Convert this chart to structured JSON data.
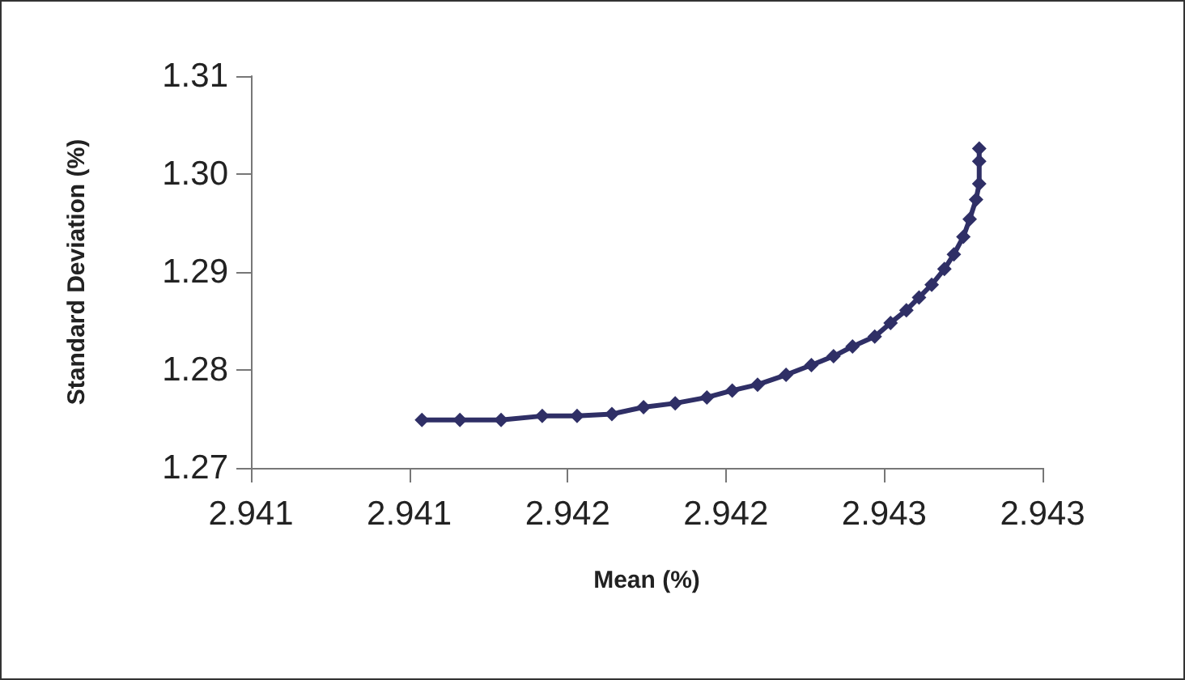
{
  "chart_data": {
    "type": "line",
    "xlabel": "Mean (%)",
    "ylabel": "Standard Deviation (%)",
    "x": [
      2.94104,
      2.94116,
      2.94129,
      2.94142,
      2.94153,
      2.94164,
      2.94174,
      2.94184,
      2.94194,
      2.94202,
      2.9421,
      2.94219,
      2.94227,
      2.94234,
      2.9424,
      2.94247,
      2.94252,
      2.94257,
      2.94261,
      2.94265,
      2.94269,
      2.94272,
      2.94275,
      2.94277,
      2.94279,
      2.9428,
      2.9428,
      2.9428
    ],
    "values": [
      1.2749,
      1.2749,
      1.2749,
      1.2753,
      1.2753,
      1.2755,
      1.2762,
      1.2766,
      1.2772,
      1.2779,
      1.2785,
      1.2795,
      1.2805,
      1.2814,
      1.2824,
      1.2834,
      1.2848,
      1.2861,
      1.2874,
      1.2887,
      1.2903,
      1.2918,
      1.2936,
      1.2954,
      1.2974,
      1.299,
      1.3013,
      1.3026
    ],
    "color": "#2f2f66",
    "xlim": [
      2.9405,
      2.943
    ],
    "xticks": [
      {
        "value": 2.9405,
        "label": "2.941"
      },
      {
        "value": 2.941,
        "label": "2.941"
      },
      {
        "value": 2.9415,
        "label": "2.942"
      },
      {
        "value": 2.942,
        "label": "2.942"
      },
      {
        "value": 2.9425,
        "label": "2.943"
      },
      {
        "value": 2.943,
        "label": "2.943"
      }
    ],
    "ylim": [
      1.27,
      1.31
    ],
    "yticks": [
      1.27,
      1.28,
      1.29,
      {
        "value": 1.3,
        "label": "1.30"
      },
      1.31
    ],
    "grid": false,
    "marker": "diamond",
    "line_style": "solid"
  }
}
